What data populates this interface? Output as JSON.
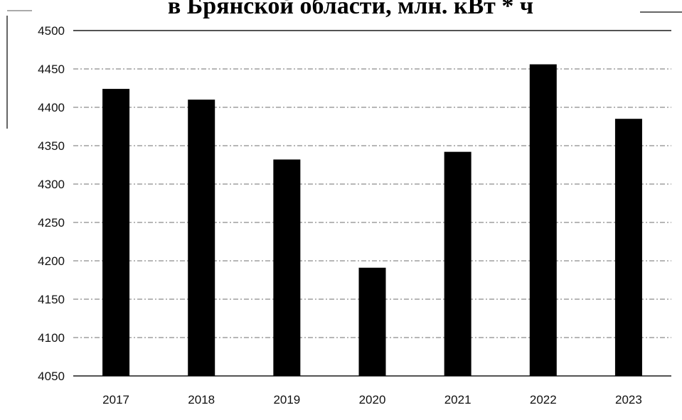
{
  "chart_data": {
    "type": "bar",
    "title": "в Брянской области, млн. кВт * ч",
    "xlabel": "",
    "ylabel": "",
    "categories": [
      "2017",
      "2018",
      "2019",
      "2020",
      "2021",
      "2022",
      "2023"
    ],
    "series": [
      {
        "values": [
          4424,
          4410,
          4332,
          4191,
          4342,
          4456,
          4385
        ]
      }
    ],
    "ylim": [
      4050,
      4500
    ],
    "yticks": [
      "4500",
      "4450",
      "4400",
      "4350",
      "4300",
      "4250",
      "4200",
      "4150",
      "4100",
      "4050"
    ],
    "grid": true,
    "legend": "none",
    "colors": {
      "bar": "#000000",
      "grid": "#6f6f6f",
      "frame": "#333333"
    }
  }
}
